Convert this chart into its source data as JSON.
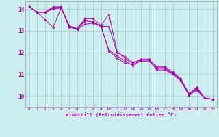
{
  "xlabel": "Windchill (Refroidissement éolien,°C)",
  "background_color": "#cceeee",
  "grid_color": "#aacccc",
  "line_color": "#aa00aa",
  "xlim": [
    -0.5,
    23.5
  ],
  "ylim": [
    9.5,
    14.35
  ],
  "yticks": [
    10,
    11,
    12,
    13,
    14
  ],
  "xticks": [
    0,
    1,
    2,
    3,
    4,
    5,
    6,
    7,
    8,
    9,
    10,
    11,
    12,
    13,
    14,
    15,
    16,
    17,
    18,
    19,
    20,
    21,
    22,
    23
  ],
  "series": [
    [
      14.1,
      13.85,
      13.85,
      14.1,
      14.1,
      13.15,
      13.1,
      13.5,
      13.4,
      13.2,
      13.2,
      12.0,
      11.8,
      11.55,
      11.65,
      11.65,
      11.35,
      11.35,
      11.1,
      10.8,
      10.1,
      10.4,
      9.9,
      9.85
    ],
    [
      14.1,
      13.85,
      13.85,
      14.05,
      14.1,
      13.2,
      13.1,
      13.55,
      13.55,
      13.25,
      13.75,
      12.05,
      11.7,
      11.5,
      11.7,
      11.7,
      11.3,
      11.3,
      11.05,
      10.75,
      10.1,
      10.35,
      9.9,
      9.85
    ],
    [
      14.1,
      13.85,
      13.5,
      13.15,
      14.05,
      13.25,
      13.05,
      13.3,
      13.35,
      13.2,
      12.1,
      11.85,
      11.6,
      11.4,
      11.65,
      11.65,
      11.2,
      11.2,
      11.0,
      10.7,
      10.05,
      10.25,
      9.9,
      9.85
    ],
    [
      14.1,
      13.85,
      13.85,
      14.0,
      14.05,
      13.2,
      13.05,
      13.45,
      13.4,
      13.2,
      12.05,
      11.75,
      11.5,
      11.45,
      11.6,
      11.6,
      11.25,
      11.25,
      11.0,
      10.7,
      10.05,
      10.3,
      9.9,
      9.85
    ]
  ]
}
